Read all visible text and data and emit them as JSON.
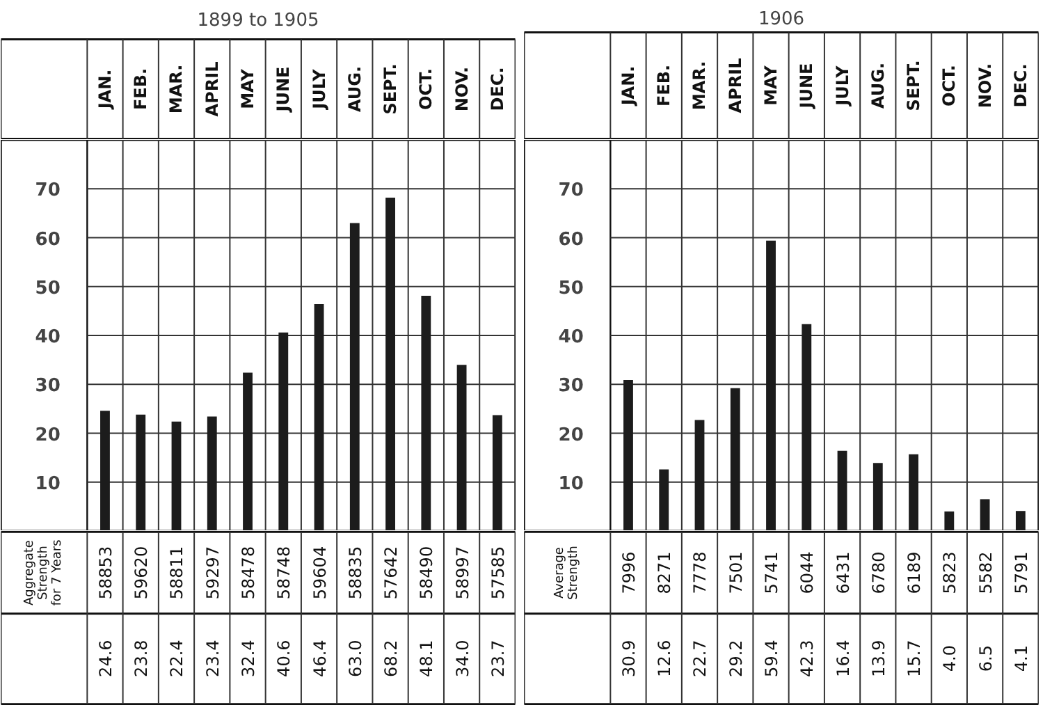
{
  "chart_data": [
    {
      "type": "bar",
      "title": "1899 to 1905",
      "categories": [
        "JAN.",
        "FEB.",
        "MAR.",
        "APRIL",
        "MAY",
        "JUNE",
        "JULY",
        "AUG.",
        "SEPT.",
        "OCT.",
        "NOV.",
        "DEC."
      ],
      "values": [
        24.6,
        23.8,
        22.4,
        23.4,
        32.4,
        40.6,
        46.4,
        63.0,
        68.2,
        48.1,
        34.0,
        23.7
      ],
      "value_labels": [
        "24.6",
        "23.8",
        "22.4",
        "23.4",
        "32.4",
        "40.6",
        "46.4",
        "63.0",
        "68.2",
        "48.1",
        "34.0",
        "23.7"
      ],
      "color": "#1c1c1c",
      "ylim": [
        0,
        80
      ],
      "yticks": [
        10,
        20,
        30,
        40,
        50,
        60,
        70
      ],
      "grid": true,
      "annotations": [
        "Aggregate Strength for 7 Years",
        "58853",
        "59620",
        "58811",
        "59297",
        "58478",
        "58748",
        "59604",
        "58835",
        "57642",
        "58490",
        "58997",
        "57585"
      ]
    },
    {
      "type": "bar",
      "title": "1906",
      "categories": [
        "JAN.",
        "FEB.",
        "MAR.",
        "APRIL",
        "MAY",
        "JUNE",
        "JULY",
        "AUG.",
        "SEPT.",
        "OCT.",
        "NOV.",
        "DEC."
      ],
      "values": [
        30.9,
        12.6,
        22.7,
        29.2,
        59.4,
        42.3,
        16.4,
        13.9,
        15.7,
        4.0,
        6.5,
        4.1
      ],
      "value_labels": [
        "30.9",
        "12.6",
        "22.7",
        "29.2",
        "59.4",
        "42.3",
        "16.4",
        "13.9",
        "15.7",
        "4.0",
        "6.5",
        "4.1"
      ],
      "color": "#1c1c1c",
      "ylim": [
        0,
        80
      ],
      "yticks": [
        10,
        20,
        30,
        40,
        50,
        60,
        70
      ],
      "grid": true,
      "annotations": [
        "Average Strength",
        "7996",
        "8271",
        "7778",
        "7501",
        "5741",
        "6044",
        "6431",
        "6780",
        "6189",
        "5823",
        "5582",
        "5791"
      ]
    }
  ]
}
